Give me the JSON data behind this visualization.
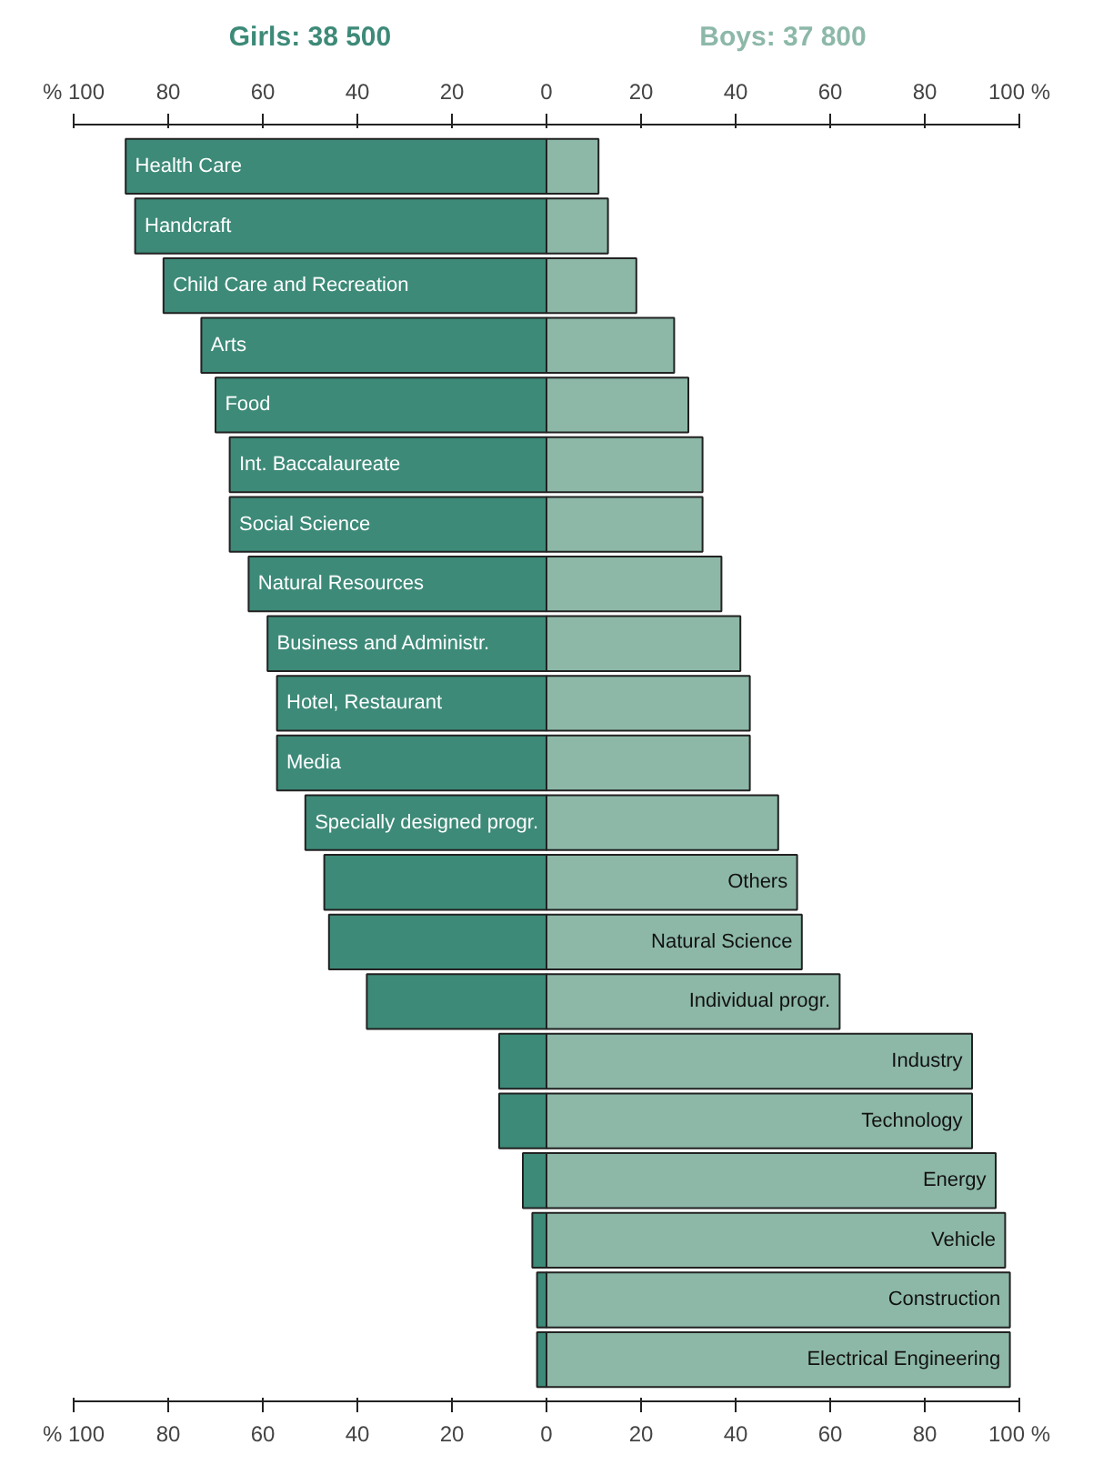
{
  "chart_data": {
    "type": "bar",
    "orientation": "horizontal",
    "stacked": true,
    "categories": [
      "Health Care",
      "Handcraft",
      "Child Care and Recreation",
      "Arts",
      "Food",
      "Int. Baccalaureate",
      "Social Science",
      "Natural Resources",
      "Business and Administr.",
      "Hotel, Restaurant",
      "Media",
      "Specially designed progr.",
      "Others",
      "Natural Science",
      "Individual progr.",
      "Industry",
      "Technology",
      "Energy",
      "Vehicle",
      "Construction",
      "Electrical Engineering"
    ],
    "series": [
      {
        "name": "Girls: 38 500",
        "color": "#3d8a78",
        "values": [
          -89,
          -87,
          -81,
          -73,
          -70,
          -67,
          -67,
          -63,
          -59,
          -57,
          -57,
          -51,
          -47,
          -46,
          -38,
          -10,
          -10,
          -5,
          -3,
          -2,
          -2
        ]
      },
      {
        "name": "Boys: 37 800",
        "color": "#8db8a8",
        "values": [
          11,
          13,
          19,
          27,
          30,
          33,
          33,
          37,
          41,
          43,
          43,
          49,
          53,
          54,
          62,
          90,
          90,
          95,
          97,
          98,
          98
        ]
      }
    ],
    "xlim": [
      -100,
      100
    ],
    "xticks": [
      {
        "value": -100,
        "label": "% 100"
      },
      {
        "value": -80,
        "label": "80"
      },
      {
        "value": -60,
        "label": "60"
      },
      {
        "value": -40,
        "label": "40"
      },
      {
        "value": -20,
        "label": "20"
      },
      0,
      20,
      40,
      60,
      80,
      {
        "value": 100,
        "label": "100 %"
      }
    ],
    "x2lim": [
      -100,
      100
    ],
    "x2ticks": [
      {
        "value": -100,
        "label": "% 100"
      },
      {
        "value": -80,
        "label": "80"
      },
      {
        "value": -60,
        "label": "60"
      },
      {
        "value": -40,
        "label": "40"
      },
      {
        "value": -20,
        "label": "20"
      },
      0,
      20,
      40,
      60,
      80,
      {
        "value": 100,
        "label": "100 %"
      }
    ],
    "legend": false,
    "grid": false
  }
}
